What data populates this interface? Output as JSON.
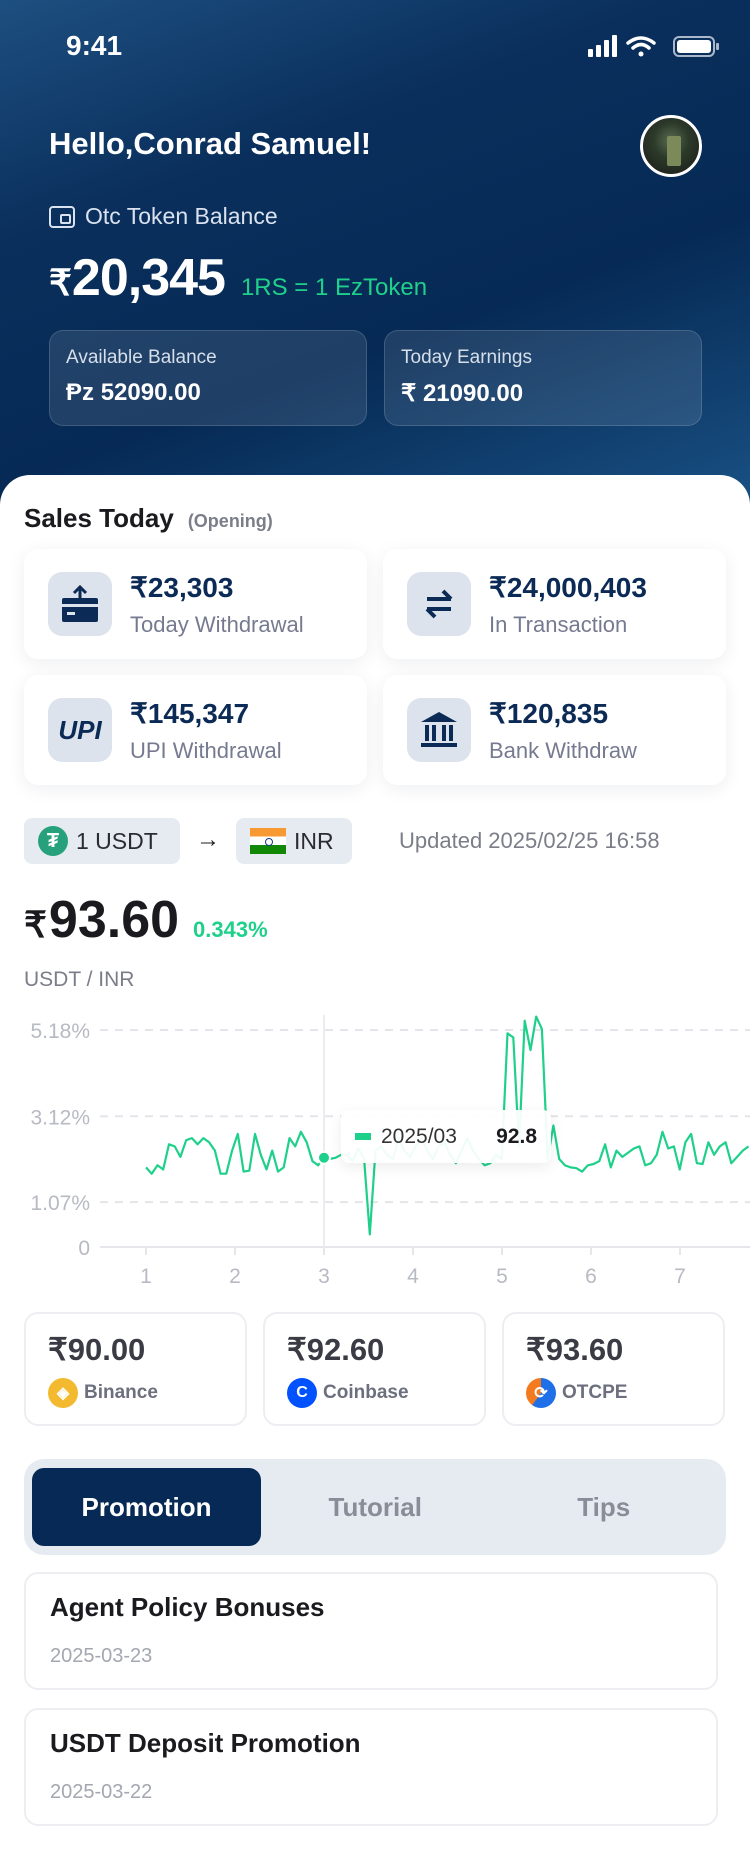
{
  "status": {
    "time": "9:41"
  },
  "header": {
    "greeting": "Hello,Conrad Samuel!",
    "balance_label": "Otc Token Balance",
    "currency": "₹",
    "balance": "20,345",
    "rate": "1RS = 1 EzToken",
    "cards": [
      {
        "label": "Available Balance",
        "symbol": "Ᵽz",
        "value": "52090.00"
      },
      {
        "label": "Today Earnings",
        "symbol": "₹",
        "value": "21090.00"
      }
    ]
  },
  "sales": {
    "title": "Sales Today",
    "subtitle": "(Opening)",
    "items": [
      {
        "value": "₹23,303",
        "label": "Today Withdrawal",
        "icon": "withdraw-icon"
      },
      {
        "value": "₹24,000,403",
        "label": "In Transaction",
        "icon": "swap-icon"
      },
      {
        "value": "₹145,347",
        "label": "UPI Withdrawal",
        "icon": "upi-icon",
        "icon_text": "UPI"
      },
      {
        "value": "₹120,835",
        "label": "Bank Withdraw",
        "icon": "bank-icon"
      }
    ]
  },
  "converter": {
    "from": "1 USDT",
    "to": "INR",
    "updated": "Updated 2025/02/25 16:58"
  },
  "price": {
    "currency": "₹",
    "value": "93.60",
    "change": "0.343%",
    "pair": "USDT / INR"
  },
  "chart_data": {
    "type": "line",
    "color": "#1fd08b",
    "grid": "dashed horizontal",
    "y_ticks": [
      "0",
      "1.07%",
      "3.12%",
      "5.18%"
    ],
    "y_tick_values": [
      0,
      1.07,
      3.12,
      5.18
    ],
    "x_ticks": [
      "1",
      "2",
      "3",
      "4",
      "5",
      "6",
      "7"
    ],
    "xlim": [
      1,
      7.77
    ],
    "ylim": [
      0,
      5.6
    ],
    "values": [
      1.9,
      1.75,
      1.95,
      1.85,
      2.45,
      2.4,
      2.15,
      2.55,
      2.6,
      2.45,
      2.6,
      2.5,
      2.3,
      1.75,
      1.75,
      2.3,
      2.7,
      1.8,
      1.82,
      2.7,
      2.2,
      1.85,
      2.3,
      1.8,
      1.9,
      2.6,
      2.4,
      2.75,
      2.5,
      2.05,
      1.95,
      2.15,
      2.1,
      2.13,
      2.2,
      2.2,
      2.05,
      2.35,
      2.1,
      0.3,
      2.3,
      2.4,
      2.2,
      2.1,
      2.6,
      2.3,
      2.15,
      2.4,
      2.6,
      2.3,
      2.1,
      2.4,
      2.5,
      2.2,
      2.0,
      2.3,
      2.6,
      2.3,
      2.1,
      1.95,
      2.0,
      2.2,
      2.1,
      5.1,
      5.0,
      2.4,
      5.4,
      4.7,
      5.5,
      5.2,
      2.1,
      2.9,
      2.1,
      1.95,
      1.9,
      1.88,
      1.8,
      1.95,
      1.98,
      2.05,
      2.45,
      1.9,
      2.3,
      2.15,
      2.25,
      2.35,
      2.4,
      1.95,
      2.0,
      2.2,
      2.75,
      2.35,
      2.4,
      1.85,
      2.5,
      2.7,
      2.0,
      1.98,
      2.5,
      2.2,
      2.4,
      2.5,
      2.0,
      2.15,
      2.3,
      2.4
    ],
    "tooltip": {
      "x": 3,
      "date": "2025/03",
      "value": "92.8"
    }
  },
  "exchanges": [
    {
      "price": "₹90.00",
      "name": "Binance",
      "color": "#f3ba2f"
    },
    {
      "price": "₹92.60",
      "name": "Coinbase",
      "color": "#0052ff"
    },
    {
      "price": "₹93.60",
      "name": "OTCPE",
      "color": "#1e6fe8"
    }
  ],
  "tabs": [
    {
      "label": "Promotion",
      "active": true
    },
    {
      "label": "Tutorial"
    },
    {
      "label": "Tips"
    }
  ],
  "promotions": [
    {
      "title": "Agent Policy Bonuses",
      "date": "2025-03-23"
    },
    {
      "title": "USDT Deposit Promotion",
      "date": "2025-03-22"
    }
  ]
}
